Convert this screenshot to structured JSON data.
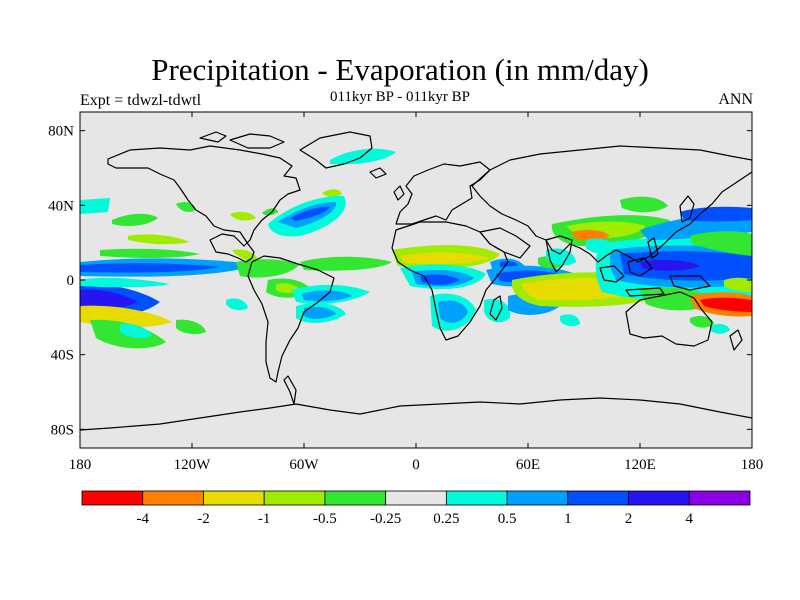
{
  "map": {
    "title": "Precipitation - Evaporation (in mm/day)",
    "subtitle": "011kyr BP - 011kyr BP",
    "left_label": "Expt = tdwzl-tdwtl",
    "right_label": "ANN",
    "y_ticks": [
      {
        "label": "80N",
        "lat": 80
      },
      {
        "label": "40N",
        "lat": 40
      },
      {
        "label": "0",
        "lat": 0
      },
      {
        "label": "40S",
        "lat": -40
      },
      {
        "label": "80S",
        "lat": -80
      }
    ],
    "x_ticks": [
      {
        "label": "180",
        "lon": -180
      },
      {
        "label": "120W",
        "lon": -120
      },
      {
        "label": "60W",
        "lon": -60
      },
      {
        "label": "0",
        "lon": 0
      },
      {
        "label": "60E",
        "lon": 60
      },
      {
        "label": "120E",
        "lon": 120
      },
      {
        "label": "180",
        "lon": 180
      }
    ],
    "lon_range": [
      -180,
      180
    ],
    "lat_range": [
      -90,
      90
    ],
    "background_color": "#e6e6e6"
  },
  "colorbar": {
    "colors": [
      "#ff0000",
      "#ff8000",
      "#e6dc00",
      "#a0eb00",
      "#32e632",
      "#e6e6e6",
      "#00fadc",
      "#00a0ff",
      "#0050ff",
      "#2814f0",
      "#8c00e6"
    ],
    "labels": [
      "-4",
      "-2",
      "-1",
      "-0.5",
      "-0.25",
      "0.25",
      "0.5",
      "1",
      "2",
      "4"
    ]
  }
}
